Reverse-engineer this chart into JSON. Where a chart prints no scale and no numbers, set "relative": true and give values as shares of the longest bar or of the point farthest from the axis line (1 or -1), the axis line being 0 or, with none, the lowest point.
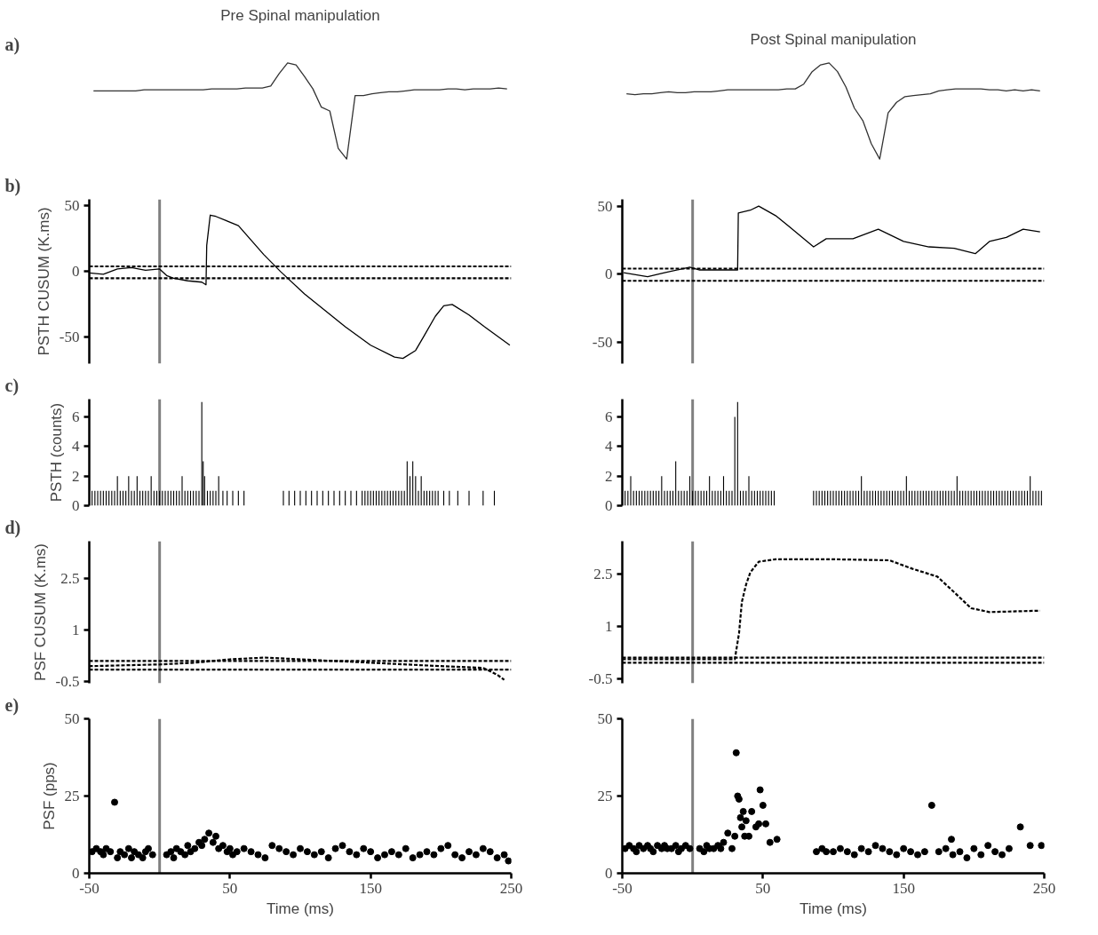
{
  "chart_data": [
    {
      "type": "line",
      "relative": true,
      "title": "Pre Spinal manipulation",
      "annotations": [
        "a)"
      ],
      "tick_labels": false,
      "categories": [
        null,
        null,
        null,
        null,
        null,
        null,
        null,
        null,
        null,
        null,
        null,
        null,
        null,
        null,
        null,
        null,
        null,
        null,
        null,
        null,
        null,
        null,
        null,
        null,
        null,
        null,
        null,
        null,
        null,
        null,
        null,
        null,
        null,
        null,
        null,
        null,
        null,
        null,
        null,
        null,
        null,
        null,
        null,
        null,
        null,
        null,
        null,
        null,
        null,
        null
      ],
      "series": [
        {
          "color": "#333333",
          "values": [
            0.71,
            0.71,
            0.71,
            0.71,
            0.71,
            0.71,
            0.72,
            0.72,
            0.72,
            0.72,
            0.72,
            0.72,
            0.72,
            0.72,
            0.73,
            0.73,
            0.73,
            0.73,
            0.74,
            0.74,
            0.74,
            0.76,
            0.89,
            1.0,
            0.98,
            0.86,
            0.73,
            0.54,
            0.5,
            0.11,
            0,
            0.66,
            0.66,
            0.68,
            0.69,
            0.7,
            0.7,
            0.71,
            0.72,
            0.72,
            0.72,
            0.72,
            0.73,
            0.73,
            0.72,
            0.73,
            0.73,
            0.73,
            0.74,
            0.73
          ]
        }
      ]
    },
    {
      "type": "line",
      "relative": true,
      "title": "Post Spinal manipulation",
      "tick_labels": false,
      "categories": [
        null,
        null,
        null,
        null,
        null,
        null,
        null,
        null,
        null,
        null,
        null,
        null,
        null,
        null,
        null,
        null,
        null,
        null,
        null,
        null,
        null,
        null,
        null,
        null,
        null,
        null,
        null,
        null,
        null,
        null,
        null,
        null,
        null,
        null,
        null,
        null,
        null,
        null,
        null,
        null,
        null,
        null,
        null,
        null,
        null,
        null,
        null,
        null,
        null,
        null
      ],
      "series": [
        {
          "color": "#333333",
          "values": [
            0.68,
            0.67,
            0.68,
            0.68,
            0.69,
            0.7,
            0.69,
            0.69,
            0.7,
            0.7,
            0.7,
            0.71,
            0.72,
            0.72,
            0.72,
            0.72,
            0.72,
            0.72,
            0.72,
            0.73,
            0.73,
            0.78,
            0.91,
            0.98,
            1.0,
            0.91,
            0.75,
            0.53,
            0.4,
            0.16,
            0,
            0.48,
            0.59,
            0.65,
            0.66,
            0.67,
            0.68,
            0.71,
            0.72,
            0.73,
            0.73,
            0.73,
            0.73,
            0.72,
            0.72,
            0.71,
            0.72,
            0.71,
            0.72,
            0.71
          ]
        }
      ]
    },
    {
      "type": "line",
      "ylabel": "PSTH CUSUM (K.ms)",
      "annotations": [
        "b)"
      ],
      "tick_labels": "y",
      "xlim": [
        -50,
        250
      ],
      "ylim": [
        -70,
        55
      ],
      "yticks": [
        -50,
        0,
        50
      ],
      "ref_lines": [
        {
          "axis": "x",
          "value": 0,
          "color": "#808080"
        },
        {
          "axis": "y",
          "value": 4,
          "color": "#000000",
          "line_style": "dashed"
        },
        {
          "axis": "y",
          "value": -5,
          "color": "#000000",
          "line_style": "dashed"
        }
      ],
      "series": [
        {
          "color": "#000000",
          "x": [
            -50,
            -40,
            -30,
            -20,
            -10,
            0,
            5,
            10,
            20,
            30,
            33,
            33.5,
            36,
            40,
            56,
            74,
            86,
            103,
            132,
            150,
            167,
            173,
            182,
            188,
            196,
            202,
            208,
            220,
            231,
            249
          ],
          "values": [
            -1,
            -2,
            2,
            3,
            1,
            2,
            -3,
            -5,
            -7,
            -8,
            -10,
            20,
            43,
            42,
            35,
            13,
            0,
            -17,
            -42,
            -56,
            -65,
            -66,
            -60,
            -49,
            -34,
            -26,
            -25,
            -33,
            -42,
            -56
          ]
        }
      ]
    },
    {
      "type": "line",
      "tick_labels": "y",
      "xlim": [
        -50,
        250
      ],
      "ylim": [
        -66,
        55
      ],
      "yticks": [
        -50,
        0,
        50
      ],
      "ref_lines": [
        {
          "axis": "x",
          "value": 0,
          "color": "#808080"
        },
        {
          "axis": "y",
          "value": 4,
          "color": "#000000",
          "line_style": "dashed"
        },
        {
          "axis": "y",
          "value": -5,
          "color": "#000000",
          "line_style": "dashed"
        }
      ],
      "series": [
        {
          "color": "#000000",
          "x": [
            -49,
            -32,
            -20,
            -2,
            5,
            17,
            32,
            32.5,
            41,
            47,
            59,
            71,
            86,
            95,
            114,
            132,
            150,
            168,
            186,
            201,
            211,
            223,
            235,
            247
          ],
          "values": [
            1,
            -2,
            1,
            5,
            3,
            3,
            3,
            45,
            47,
            50,
            43,
            33,
            20,
            26,
            26,
            33,
            24,
            20,
            19,
            15,
            24,
            27,
            33,
            31
          ]
        }
      ]
    },
    {
      "type": "bar",
      "ylabel": "PSTH (counts)",
      "annotations": [
        "c)"
      ],
      "tick_labels": "y",
      "xlim": [
        -50,
        250
      ],
      "ylim": [
        0,
        7.2
      ],
      "yticks": [
        0,
        2,
        4,
        6
      ],
      "color": "#000000",
      "ref_lines": [
        {
          "axis": "x",
          "value": 0,
          "color": "#808080"
        }
      ],
      "x": [
        -48,
        -46,
        -44,
        -42,
        -40,
        -38,
        -36,
        -34,
        -32,
        -30,
        -28,
        -26,
        -24,
        -22,
        -20,
        -18,
        -16,
        -14,
        -12,
        -10,
        -8,
        -6,
        -4,
        -2,
        0,
        2,
        4,
        6,
        8,
        10,
        12,
        14,
        16,
        18,
        20,
        22,
        24,
        26,
        28,
        30,
        31,
        32,
        34,
        36,
        38,
        40,
        42,
        45,
        48,
        52,
        56,
        60,
        88,
        92,
        96,
        100,
        104,
        108,
        112,
        116,
        120,
        124,
        128,
        132,
        136,
        140,
        144,
        146,
        148,
        150,
        152,
        154,
        156,
        158,
        160,
        162,
        164,
        166,
        168,
        170,
        172,
        174,
        176,
        178,
        180,
        182,
        184,
        186,
        188,
        190,
        192,
        194,
        196,
        198,
        202,
        206,
        212,
        220,
        230,
        238
      ],
      "values": [
        1,
        1,
        1,
        1,
        1,
        1,
        1,
        1,
        1,
        2,
        1,
        1,
        1,
        2,
        1,
        1,
        2,
        1,
        1,
        1,
        1,
        2,
        1,
        1,
        1,
        1,
        1,
        1,
        1,
        1,
        1,
        1,
        2,
        1,
        1,
        1,
        1,
        1,
        1,
        7,
        3,
        2,
        1,
        1,
        1,
        1,
        2,
        1,
        1,
        1,
        1,
        1,
        1,
        1,
        1,
        1,
        1,
        1,
        1,
        1,
        1,
        1,
        1,
        1,
        1,
        1,
        1,
        1,
        1,
        1,
        1,
        1,
        1,
        1,
        1,
        1,
        1,
        1,
        1,
        1,
        1,
        1,
        3,
        2,
        3,
        2,
        1,
        2,
        1,
        1,
        1,
        1,
        1,
        1,
        1,
        1,
        1,
        1,
        1,
        1
      ]
    },
    {
      "type": "bar",
      "tick_labels": "y",
      "xlim": [
        -50,
        250
      ],
      "ylim": [
        0,
        7.2
      ],
      "yticks": [
        0,
        2,
        4,
        6
      ],
      "color": "#000000",
      "ref_lines": [
        {
          "axis": "x",
          "value": 0,
          "color": "#808080"
        }
      ],
      "x": [
        -48,
        -46,
        -44,
        -42,
        -40,
        -38,
        -36,
        -34,
        -32,
        -30,
        -28,
        -26,
        -24,
        -22,
        -20,
        -18,
        -16,
        -14,
        -12,
        -10,
        -8,
        -6,
        -4,
        -2,
        0,
        2,
        4,
        6,
        8,
        10,
        12,
        14,
        16,
        18,
        20,
        22,
        24,
        26,
        28,
        30,
        32,
        34,
        36,
        38,
        40,
        42,
        44,
        46,
        48,
        50,
        52,
        54,
        56,
        58,
        86,
        88,
        90,
        92,
        94,
        96,
        98,
        100,
        102,
        104,
        106,
        108,
        110,
        112,
        114,
        116,
        118,
        120,
        122,
        124,
        126,
        128,
        130,
        132,
        134,
        136,
        138,
        140,
        142,
        144,
        146,
        148,
        150,
        152,
        154,
        156,
        158,
        160,
        162,
        164,
        166,
        168,
        170,
        172,
        174,
        176,
        178,
        180,
        182,
        184,
        186,
        188,
        190,
        192,
        194,
        196,
        198,
        200,
        202,
        204,
        206,
        208,
        210,
        212,
        214,
        216,
        218,
        220,
        222,
        224,
        226,
        228,
        230,
        232,
        234,
        236,
        238,
        240,
        242,
        244,
        246,
        248
      ],
      "values": [
        1,
        1,
        2,
        1,
        1,
        1,
        1,
        1,
        1,
        1,
        1,
        1,
        1,
        2,
        1,
        1,
        1,
        1,
        3,
        1,
        1,
        1,
        1,
        2,
        1,
        1,
        1,
        1,
        1,
        1,
        2,
        1,
        1,
        1,
        1,
        2,
        1,
        1,
        1,
        6,
        7,
        1,
        1,
        1,
        2,
        1,
        1,
        1,
        1,
        1,
        1,
        1,
        1,
        1,
        1,
        1,
        1,
        1,
        1,
        1,
        1,
        1,
        1,
        1,
        1,
        1,
        1,
        1,
        1,
        1,
        1,
        2,
        1,
        1,
        1,
        1,
        1,
        1,
        1,
        1,
        1,
        1,
        1,
        1,
        1,
        1,
        1,
        2,
        1,
        1,
        1,
        1,
        1,
        1,
        1,
        1,
        1,
        1,
        1,
        1,
        1,
        1,
        1,
        1,
        1,
        2,
        1,
        1,
        1,
        1,
        1,
        1,
        1,
        1,
        1,
        1,
        1,
        1,
        1,
        1,
        1,
        1,
        1,
        1,
        1,
        1,
        1,
        1,
        1,
        1,
        1,
        2,
        1,
        1,
        1,
        1
      ]
    },
    {
      "type": "line",
      "ylabel": "PSF CUSUM (K.ms)",
      "annotations": [
        "d)"
      ],
      "tick_labels": "y",
      "xlim": [
        -50,
        250
      ],
      "ylim": [
        -0.55,
        3.6
      ],
      "yticks": [
        -0.5,
        1,
        2.5
      ],
      "ref_lines": [
        {
          "axis": "x",
          "value": 0,
          "color": "#808080"
        },
        {
          "axis": "y",
          "value": 0.1,
          "color": "#000000",
          "line_style": "dashed"
        },
        {
          "axis": "y",
          "value": -0.15,
          "color": "#000000",
          "line_style": "dashed"
        }
      ],
      "series": [
        {
          "color": "#000000",
          "line_style": "dashed",
          "x": [
            -50,
            0,
            25,
            50,
            75,
            100,
            150,
            200,
            230,
            240,
            245
          ],
          "values": [
            -0.05,
            0.0,
            0.05,
            0.15,
            0.2,
            0.15,
            0.05,
            -0.05,
            -0.1,
            -0.3,
            -0.45
          ]
        }
      ]
    },
    {
      "type": "line",
      "tick_labels": "y",
      "xlim": [
        -50,
        250
      ],
      "ylim": [
        -0.64,
        3.45
      ],
      "yticks": [
        -0.5,
        1,
        2.5
      ],
      "ref_lines": [
        {
          "axis": "x",
          "value": 0,
          "color": "#808080"
        },
        {
          "axis": "y",
          "value": 0.1,
          "color": "#000000",
          "line_style": "dashed"
        },
        {
          "axis": "y",
          "value": -0.05,
          "color": "#000000",
          "line_style": "dashed"
        }
      ],
      "series": [
        {
          "color": "#000000",
          "line_style": "dashed",
          "x": [
            -50,
            30,
            33,
            35,
            38,
            41,
            47,
            59,
            100,
            140,
            156,
            174,
            186,
            198,
            211,
            247
          ],
          "values": [
            0.05,
            0.05,
            0.8,
            1.7,
            2.2,
            2.55,
            2.86,
            2.93,
            2.93,
            2.9,
            2.66,
            2.43,
            1.98,
            1.52,
            1.41,
            1.45
          ]
        }
      ]
    },
    {
      "type": "scatter",
      "marker": "circle",
      "ylabel": "PSF (pps)",
      "xlabel": "Time (ms)",
      "annotations": [
        "e)"
      ],
      "xlim": [
        -50,
        250
      ],
      "ylim": [
        0,
        50
      ],
      "xticks": [
        -50,
        50,
        150,
        250
      ],
      "yticks": [
        0,
        25,
        50
      ],
      "ref_lines": [
        {
          "axis": "x",
          "value": 0,
          "color": "#808080"
        }
      ],
      "series": [
        {
          "color": "#000000",
          "x": [
            -48,
            -45,
            -42,
            -40,
            -38,
            -35,
            -32,
            -30,
            -28,
            -25,
            -22,
            -20,
            -18,
            -15,
            -12,
            -10,
            -8,
            -5,
            5,
            8,
            10,
            12,
            15,
            18,
            20,
            22,
            25,
            28,
            30,
            32,
            35,
            38,
            40,
            42,
            45,
            48,
            50,
            52,
            55,
            60,
            65,
            70,
            75,
            80,
            85,
            90,
            95,
            100,
            105,
            110,
            115,
            120,
            125,
            130,
            135,
            140,
            145,
            150,
            155,
            160,
            165,
            170,
            175,
            180,
            185,
            190,
            195,
            200,
            205,
            210,
            215,
            220,
            225,
            230,
            235,
            240,
            245,
            248
          ],
          "values": [
            7,
            8,
            7,
            6,
            8,
            7,
            23,
            5,
            7,
            6,
            8,
            5,
            7,
            6,
            5,
            7,
            8,
            6,
            6,
            7,
            5,
            8,
            7,
            6,
            9,
            7,
            8,
            10,
            9,
            11,
            13,
            10,
            12,
            8,
            9,
            7,
            8,
            6,
            7,
            8,
            7,
            6,
            5,
            9,
            8,
            7,
            6,
            8,
            7,
            6,
            7,
            5,
            8,
            9,
            7,
            6,
            8,
            7,
            5,
            6,
            7,
            6,
            8,
            5,
            6,
            7,
            6,
            8,
            9,
            6,
            5,
            7,
            6,
            8,
            7,
            5,
            6,
            4
          ]
        }
      ]
    },
    {
      "type": "scatter",
      "marker": "circle",
      "xlabel": "Time (ms)",
      "xlim": [
        -50,
        250
      ],
      "ylim": [
        0,
        50
      ],
      "xticks": [
        -50,
        50,
        150,
        250
      ],
      "yticks": [
        0,
        25,
        50
      ],
      "ref_lines": [
        {
          "axis": "x",
          "value": 0,
          "color": "#808080"
        }
      ],
      "series": [
        {
          "color": "#000000",
          "x": [
            -48,
            -45,
            -42,
            -40,
            -38,
            -35,
            -32,
            -30,
            -28,
            -25,
            -22,
            -20,
            -18,
            -15,
            -12,
            -10,
            -8,
            -5,
            -2,
            5,
            8,
            10,
            12,
            15,
            18,
            20,
            22,
            25,
            28,
            30,
            31,
            32,
            33,
            34,
            35,
            36,
            37,
            38,
            40,
            42,
            45,
            47,
            48,
            50,
            52,
            55,
            60,
            88,
            92,
            95,
            100,
            105,
            110,
            115,
            120,
            125,
            130,
            135,
            140,
            145,
            150,
            155,
            160,
            165,
            170,
            175,
            180,
            184,
            185,
            190,
            195,
            200,
            205,
            210,
            215,
            220,
            225,
            233,
            240,
            248
          ],
          "values": [
            8,
            9,
            8,
            7,
            9,
            8,
            9,
            8,
            7,
            9,
            8,
            9,
            8,
            8,
            9,
            7,
            8,
            9,
            8,
            8,
            7,
            9,
            8,
            8,
            9,
            8,
            10,
            13,
            8,
            12,
            39,
            25,
            24,
            18,
            15,
            20,
            12,
            17,
            12,
            20,
            15,
            16,
            27,
            22,
            16,
            10,
            11,
            7,
            8,
            7,
            7,
            8,
            7,
            6,
            8,
            7,
            9,
            8,
            7,
            6,
            8,
            7,
            6,
            7,
            22,
            7,
            8,
            11,
            6,
            7,
            5,
            8,
            6,
            9,
            7,
            6,
            8,
            15,
            9,
            9
          ]
        }
      ]
    }
  ]
}
